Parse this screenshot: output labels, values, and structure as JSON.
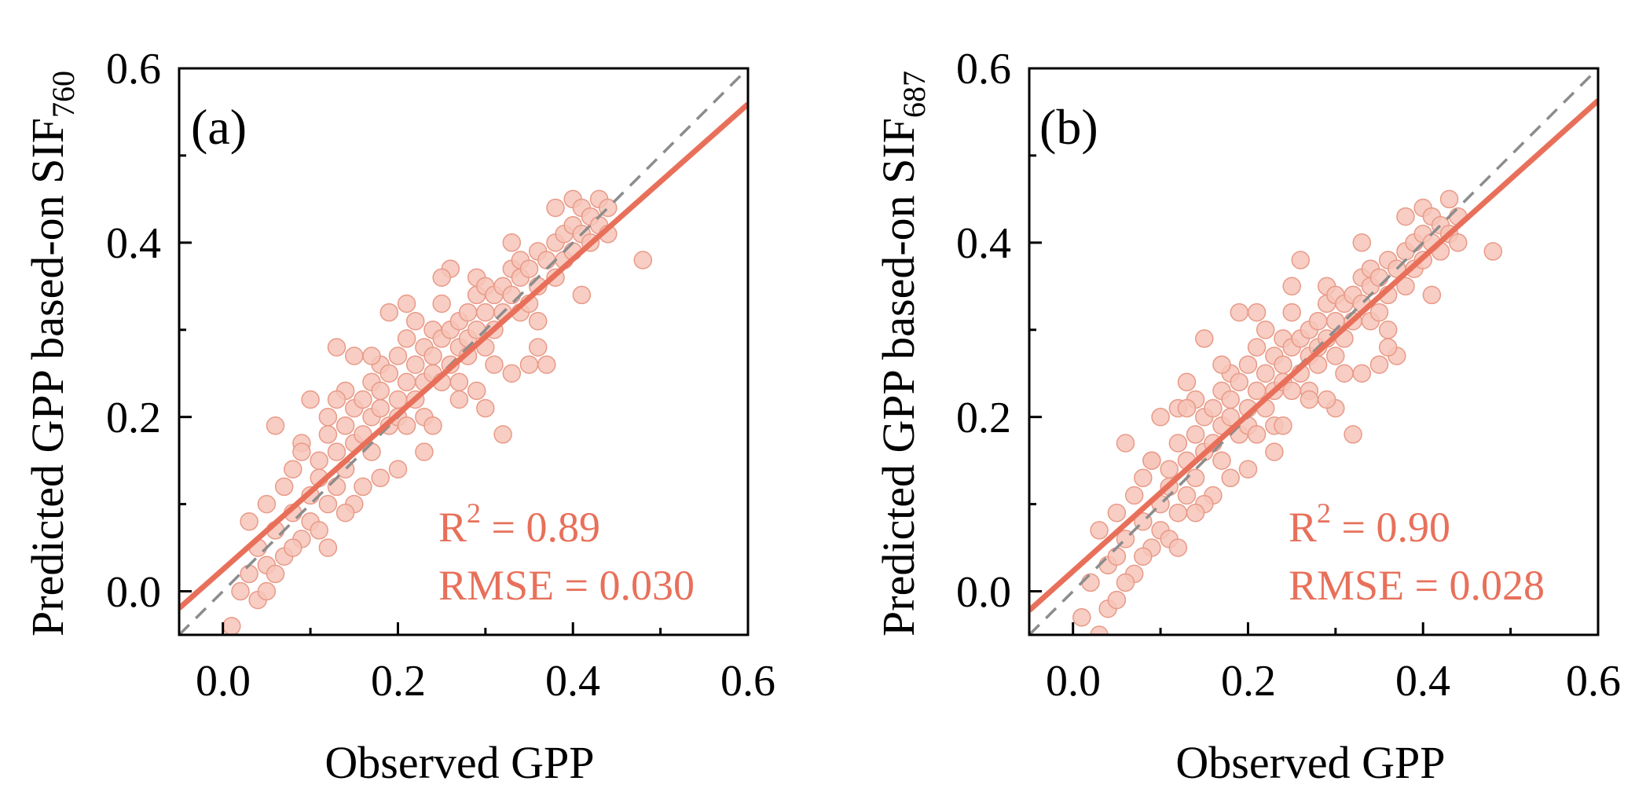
{
  "colors": {
    "fit_line": "#e8705a",
    "point_fill": "#f7c4b8",
    "point_stroke": "#e89a88",
    "one_to_one_line": "#8c8c8c",
    "stats_text": "#e8705a",
    "axes": "#000000"
  },
  "chart_data": [
    {
      "type": "scatter",
      "panel_label": "(a)",
      "xlabel": "Observed GPP",
      "ylabel_main": "Predicted GPP based-on SIF",
      "ylabel_sub": "760",
      "xlim": [
        -0.05,
        0.6
      ],
      "ylim": [
        -0.05,
        0.6
      ],
      "xticks": [
        0.0,
        0.2,
        0.4,
        0.6
      ],
      "yticks": [
        0.0,
        0.2,
        0.4,
        0.6
      ],
      "xtick_labels": [
        "0.0",
        "0.2",
        "0.4",
        "0.6"
      ],
      "ytick_labels": [
        "0.0",
        "0.2",
        "0.4",
        "0.6"
      ],
      "grid": false,
      "one_to_one_line": true,
      "fit_line": {
        "slope": 0.89,
        "intercept": 0.025
      },
      "stats": {
        "r2_label": "R",
        "r2_sup": "2",
        "r2_value": " = 0.89",
        "rmse": "RMSE = 0.030"
      },
      "points": [
        [
          0.01,
          -0.04
        ],
        [
          0.02,
          0.0
        ],
        [
          0.03,
          0.02
        ],
        [
          0.03,
          0.08
        ],
        [
          0.04,
          -0.01
        ],
        [
          0.04,
          0.05
        ],
        [
          0.05,
          0.1
        ],
        [
          0.05,
          0.03
        ],
        [
          0.06,
          0.19
        ],
        [
          0.06,
          0.07
        ],
        [
          0.07,
          0.12
        ],
        [
          0.07,
          0.04
        ],
        [
          0.08,
          0.14
        ],
        [
          0.08,
          0.09
        ],
        [
          0.09,
          0.06
        ],
        [
          0.09,
          0.17
        ],
        [
          0.1,
          0.22
        ],
        [
          0.1,
          0.11
        ],
        [
          0.1,
          0.08
        ],
        [
          0.11,
          0.15
        ],
        [
          0.11,
          0.13
        ],
        [
          0.12,
          0.18
        ],
        [
          0.12,
          0.1
        ],
        [
          0.12,
          0.2
        ],
        [
          0.13,
          0.16
        ],
        [
          0.13,
          0.28
        ],
        [
          0.13,
          0.12
        ],
        [
          0.14,
          0.19
        ],
        [
          0.14,
          0.14
        ],
        [
          0.14,
          0.23
        ],
        [
          0.15,
          0.17
        ],
        [
          0.15,
          0.21
        ],
        [
          0.15,
          0.27
        ],
        [
          0.16,
          0.18
        ],
        [
          0.16,
          0.22
        ],
        [
          0.16,
          0.12
        ],
        [
          0.17,
          0.24
        ],
        [
          0.17,
          0.2
        ],
        [
          0.17,
          0.16
        ],
        [
          0.18,
          0.21
        ],
        [
          0.18,
          0.26
        ],
        [
          0.18,
          0.23
        ],
        [
          0.19,
          0.25
        ],
        [
          0.19,
          0.19
        ],
        [
          0.19,
          0.32
        ],
        [
          0.2,
          0.22
        ],
        [
          0.2,
          0.27
        ],
        [
          0.2,
          0.2
        ],
        [
          0.21,
          0.24
        ],
        [
          0.21,
          0.29
        ],
        [
          0.21,
          0.19
        ],
        [
          0.22,
          0.26
        ],
        [
          0.22,
          0.22
        ],
        [
          0.22,
          0.31
        ],
        [
          0.23,
          0.28
        ],
        [
          0.23,
          0.24
        ],
        [
          0.23,
          0.2
        ],
        [
          0.24,
          0.27
        ],
        [
          0.24,
          0.3
        ],
        [
          0.24,
          0.25
        ],
        [
          0.25,
          0.29
        ],
        [
          0.25,
          0.24
        ],
        [
          0.25,
          0.33
        ],
        [
          0.26,
          0.3
        ],
        [
          0.26,
          0.26
        ],
        [
          0.26,
          0.37
        ],
        [
          0.27,
          0.31
        ],
        [
          0.27,
          0.28
        ],
        [
          0.27,
          0.24
        ],
        [
          0.28,
          0.32
        ],
        [
          0.28,
          0.29
        ],
        [
          0.28,
          0.27
        ],
        [
          0.29,
          0.34
        ],
        [
          0.29,
          0.3
        ],
        [
          0.29,
          0.36
        ],
        [
          0.3,
          0.32
        ],
        [
          0.3,
          0.28
        ],
        [
          0.3,
          0.35
        ],
        [
          0.31,
          0.34
        ],
        [
          0.31,
          0.3
        ],
        [
          0.31,
          0.26
        ],
        [
          0.32,
          0.35
        ],
        [
          0.32,
          0.32
        ],
        [
          0.32,
          0.18
        ],
        [
          0.33,
          0.37
        ],
        [
          0.33,
          0.34
        ],
        [
          0.33,
          0.4
        ],
        [
          0.34,
          0.36
        ],
        [
          0.34,
          0.32
        ],
        [
          0.34,
          0.38
        ],
        [
          0.35,
          0.37
        ],
        [
          0.35,
          0.33
        ],
        [
          0.36,
          0.39
        ],
        [
          0.36,
          0.35
        ],
        [
          0.36,
          0.31
        ],
        [
          0.37,
          0.38
        ],
        [
          0.37,
          0.26
        ],
        [
          0.38,
          0.4
        ],
        [
          0.38,
          0.36
        ],
        [
          0.39,
          0.41
        ],
        [
          0.39,
          0.38
        ],
        [
          0.4,
          0.42
        ],
        [
          0.4,
          0.39
        ],
        [
          0.4,
          0.45
        ],
        [
          0.41,
          0.41
        ],
        [
          0.41,
          0.44
        ],
        [
          0.42,
          0.43
        ],
        [
          0.42,
          0.4
        ],
        [
          0.43,
          0.45
        ],
        [
          0.43,
          0.42
        ],
        [
          0.44,
          0.44
        ],
        [
          0.44,
          0.41
        ],
        [
          0.48,
          0.38
        ],
        [
          0.35,
          0.26
        ],
        [
          0.27,
          0.22
        ],
        [
          0.2,
          0.14
        ],
        [
          0.15,
          0.1
        ],
        [
          0.11,
          0.07
        ],
        [
          0.08,
          0.05
        ],
        [
          0.06,
          0.02
        ],
        [
          0.05,
          0.0
        ],
        [
          0.12,
          0.05
        ],
        [
          0.23,
          0.16
        ],
        [
          0.3,
          0.21
        ],
        [
          0.33,
          0.25
        ],
        [
          0.17,
          0.27
        ],
        [
          0.13,
          0.22
        ],
        [
          0.09,
          0.16
        ],
        [
          0.21,
          0.33
        ],
        [
          0.25,
          0.36
        ],
        [
          0.38,
          0.44
        ],
        [
          0.24,
          0.19
        ],
        [
          0.18,
          0.13
        ],
        [
          0.14,
          0.09
        ],
        [
          0.36,
          0.28
        ],
        [
          0.41,
          0.34
        ],
        [
          0.29,
          0.23
        ]
      ]
    },
    {
      "type": "scatter",
      "panel_label": "(b)",
      "xlabel": "Observed GPP",
      "ylabel_main": "Predicted GPP based-on SIF",
      "ylabel_sub": "687",
      "xlim": [
        -0.05,
        0.6
      ],
      "ylim": [
        -0.05,
        0.6
      ],
      "xticks": [
        0.0,
        0.2,
        0.4,
        0.6
      ],
      "yticks": [
        0.0,
        0.2,
        0.4,
        0.6
      ],
      "xtick_labels": [
        "0.0",
        "0.2",
        "0.4",
        "0.6"
      ],
      "ytick_labels": [
        "0.0",
        "0.2",
        "0.4",
        "0.6"
      ],
      "grid": false,
      "one_to_one_line": true,
      "fit_line": {
        "slope": 0.9,
        "intercept": 0.023
      },
      "stats": {
        "r2_label": "R",
        "r2_sup": "2",
        "r2_value": " = 0.90",
        "rmse": "RMSE = 0.028"
      },
      "points": [
        [
          0.01,
          -0.03
        ],
        [
          0.02,
          0.01
        ],
        [
          0.03,
          -0.05
        ],
        [
          0.03,
          0.07
        ],
        [
          0.04,
          0.03
        ],
        [
          0.04,
          -0.02
        ],
        [
          0.05,
          0.09
        ],
        [
          0.05,
          0.04
        ],
        [
          0.06,
          0.17
        ],
        [
          0.06,
          0.06
        ],
        [
          0.07,
          0.11
        ],
        [
          0.07,
          0.02
        ],
        [
          0.08,
          0.13
        ],
        [
          0.08,
          0.08
        ],
        [
          0.09,
          0.15
        ],
        [
          0.09,
          0.05
        ],
        [
          0.1,
          0.2
        ],
        [
          0.1,
          0.1
        ],
        [
          0.1,
          0.07
        ],
        [
          0.11,
          0.14
        ],
        [
          0.11,
          0.12
        ],
        [
          0.12,
          0.17
        ],
        [
          0.12,
          0.09
        ],
        [
          0.12,
          0.21
        ],
        [
          0.13,
          0.15
        ],
        [
          0.13,
          0.24
        ],
        [
          0.13,
          0.11
        ],
        [
          0.14,
          0.18
        ],
        [
          0.14,
          0.13
        ],
        [
          0.14,
          0.22
        ],
        [
          0.15,
          0.16
        ],
        [
          0.15,
          0.2
        ],
        [
          0.15,
          0.29
        ],
        [
          0.16,
          0.17
        ],
        [
          0.16,
          0.21
        ],
        [
          0.16,
          0.11
        ],
        [
          0.17,
          0.23
        ],
        [
          0.17,
          0.19
        ],
        [
          0.17,
          0.15
        ],
        [
          0.18,
          0.2
        ],
        [
          0.18,
          0.25
        ],
        [
          0.18,
          0.22
        ],
        [
          0.19,
          0.24
        ],
        [
          0.19,
          0.18
        ],
        [
          0.19,
          0.32
        ],
        [
          0.2,
          0.21
        ],
        [
          0.2,
          0.26
        ],
        [
          0.2,
          0.19
        ],
        [
          0.21,
          0.23
        ],
        [
          0.21,
          0.28
        ],
        [
          0.21,
          0.18
        ],
        [
          0.22,
          0.25
        ],
        [
          0.22,
          0.21
        ],
        [
          0.22,
          0.3
        ],
        [
          0.23,
          0.27
        ],
        [
          0.23,
          0.23
        ],
        [
          0.23,
          0.19
        ],
        [
          0.24,
          0.26
        ],
        [
          0.24,
          0.29
        ],
        [
          0.24,
          0.24
        ],
        [
          0.25,
          0.28
        ],
        [
          0.25,
          0.23
        ],
        [
          0.25,
          0.32
        ],
        [
          0.26,
          0.29
        ],
        [
          0.26,
          0.25
        ],
        [
          0.26,
          0.38
        ],
        [
          0.27,
          0.3
        ],
        [
          0.27,
          0.27
        ],
        [
          0.27,
          0.23
        ],
        [
          0.28,
          0.31
        ],
        [
          0.28,
          0.28
        ],
        [
          0.28,
          0.26
        ],
        [
          0.29,
          0.33
        ],
        [
          0.29,
          0.29
        ],
        [
          0.29,
          0.35
        ],
        [
          0.3,
          0.31
        ],
        [
          0.3,
          0.27
        ],
        [
          0.3,
          0.34
        ],
        [
          0.31,
          0.33
        ],
        [
          0.31,
          0.29
        ],
        [
          0.31,
          0.25
        ],
        [
          0.32,
          0.34
        ],
        [
          0.32,
          0.31
        ],
        [
          0.32,
          0.18
        ],
        [
          0.33,
          0.36
        ],
        [
          0.33,
          0.33
        ],
        [
          0.33,
          0.4
        ],
        [
          0.34,
          0.35
        ],
        [
          0.34,
          0.31
        ],
        [
          0.34,
          0.37
        ],
        [
          0.35,
          0.36
        ],
        [
          0.35,
          0.32
        ],
        [
          0.36,
          0.38
        ],
        [
          0.36,
          0.34
        ],
        [
          0.36,
          0.3
        ],
        [
          0.37,
          0.37
        ],
        [
          0.37,
          0.27
        ],
        [
          0.38,
          0.39
        ],
        [
          0.38,
          0.35
        ],
        [
          0.39,
          0.4
        ],
        [
          0.39,
          0.37
        ],
        [
          0.4,
          0.41
        ],
        [
          0.4,
          0.38
        ],
        [
          0.4,
          0.44
        ],
        [
          0.41,
          0.4
        ],
        [
          0.41,
          0.43
        ],
        [
          0.42,
          0.42
        ],
        [
          0.42,
          0.39
        ],
        [
          0.43,
          0.45
        ],
        [
          0.43,
          0.41
        ],
        [
          0.44,
          0.43
        ],
        [
          0.44,
          0.4
        ],
        [
          0.48,
          0.39
        ],
        [
          0.35,
          0.26
        ],
        [
          0.27,
          0.22
        ],
        [
          0.2,
          0.14
        ],
        [
          0.15,
          0.1
        ],
        [
          0.11,
          0.06
        ],
        [
          0.08,
          0.04
        ],
        [
          0.06,
          0.01
        ],
        [
          0.05,
          -0.01
        ],
        [
          0.12,
          0.05
        ],
        [
          0.23,
          0.16
        ],
        [
          0.3,
          0.21
        ],
        [
          0.33,
          0.25
        ],
        [
          0.17,
          0.26
        ],
        [
          0.13,
          0.21
        ],
        [
          0.09,
          0.15
        ],
        [
          0.21,
          0.32
        ],
        [
          0.25,
          0.35
        ],
        [
          0.38,
          0.43
        ],
        [
          0.24,
          0.19
        ],
        [
          0.18,
          0.13
        ],
        [
          0.14,
          0.09
        ],
        [
          0.36,
          0.28
        ],
        [
          0.41,
          0.34
        ],
        [
          0.29,
          0.22
        ]
      ]
    }
  ]
}
